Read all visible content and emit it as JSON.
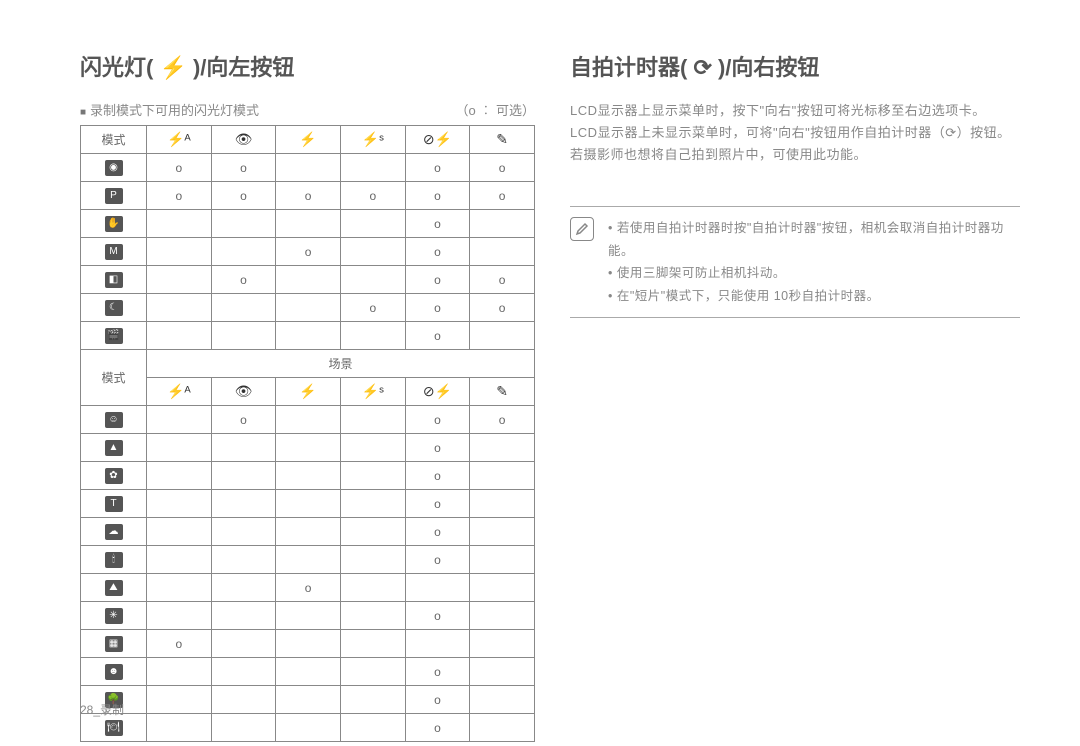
{
  "left": {
    "title": "闪光灯( ⚡ )/向左按钮",
    "subtitle_prefix": "■",
    "subtitle": "录制模式下可用的闪光灯模式",
    "legend": "（o ︰ 可选）",
    "col_mode_label": "模式",
    "scene_label": "场景",
    "mark": "o",
    "header_icons": [
      "⚡ᴬ",
      "👁",
      "⚡",
      "⚡ˢ",
      "⊘⚡",
      "✎"
    ],
    "row_icons_top": [
      "◉",
      "P",
      "✋",
      "M",
      "◧",
      "☾",
      "🎬"
    ],
    "table_top": [
      [
        "o",
        "o",
        "",
        "",
        "o",
        "o"
      ],
      [
        "o",
        "o",
        "o",
        "o",
        "o",
        "o"
      ],
      [
        "",
        "",
        "",
        "",
        "o",
        ""
      ],
      [
        "",
        "",
        "o",
        "",
        "o",
        ""
      ],
      [
        "",
        "o",
        "",
        "",
        "o",
        "o"
      ],
      [
        "",
        "",
        "",
        "o",
        "o",
        "o"
      ],
      [
        "",
        "",
        "",
        "",
        "o",
        ""
      ]
    ],
    "row_icons_bottom": [
      "☺",
      "▲",
      "✿",
      "T",
      "☁",
      "🕯",
      "⛰",
      "✳",
      "▦",
      "☻",
      "🌳",
      "🍽"
    ],
    "table_bottom": [
      [
        "",
        "o",
        "",
        "",
        "o",
        "o"
      ],
      [
        "",
        "",
        "",
        "",
        "o",
        ""
      ],
      [
        "",
        "",
        "",
        "",
        "o",
        ""
      ],
      [
        "",
        "",
        "",
        "",
        "o",
        ""
      ],
      [
        "",
        "",
        "",
        "",
        "o",
        ""
      ],
      [
        "",
        "",
        "",
        "",
        "o",
        ""
      ],
      [
        "",
        "",
        "o",
        "",
        "",
        ""
      ],
      [
        "",
        "",
        "",
        "",
        "o",
        ""
      ],
      [
        "o",
        "",
        "",
        "",
        "",
        ""
      ],
      [
        "",
        "",
        "",
        "",
        "o",
        ""
      ],
      [
        "",
        "",
        "",
        "",
        "o",
        ""
      ],
      [
        "",
        "",
        "",
        "",
        "o",
        ""
      ]
    ]
  },
  "right": {
    "title": "自拍计时器( ⟳ )/向右按钮",
    "para1": "LCD显示器上显示菜单时，按下\"向右\"按钮可将光标移至右边选项卡。",
    "para2": "LCD显示器上未显示菜单时，可将\"向右\"按钮用作自拍计时器（⟳）按钮。若摄影师也想将自己拍到照片中，可使用此功能。",
    "notes": [
      "若使用自拍计时器时按\"自拍计时器\"按钮，相机会取消自拍计时器功能。",
      "使用三脚架可防止相机抖动。",
      "在\"短片\"模式下，只能使用 10秒自拍计时器。"
    ]
  },
  "footer": "28_录制"
}
